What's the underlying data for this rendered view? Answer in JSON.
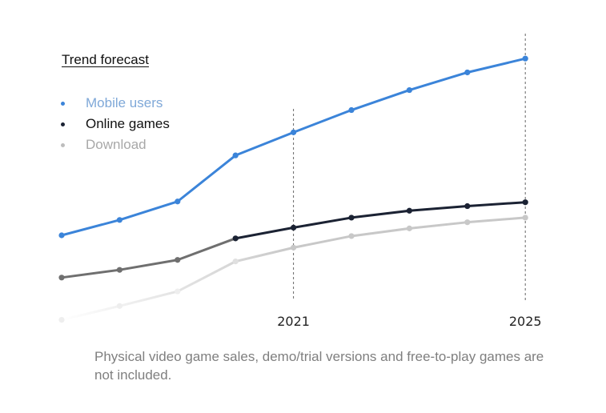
{
  "chart_data": {
    "type": "line",
    "title": "Trend forecast",
    "x": [
      "2017",
      "2018",
      "2019",
      "2020",
      "2021",
      "2022",
      "2023",
      "2024",
      "2025"
    ],
    "x_tick_labels": [
      "2021",
      "2025"
    ],
    "reference_lines_at": [
      "2021",
      "2025"
    ],
    "series": [
      {
        "name": "Mobile users",
        "color": "#3b84d9",
        "values": [
          100,
          120,
          144,
          204,
          234,
          263,
          289,
          312,
          330
        ]
      },
      {
        "name": "Online games",
        "color": "#1b2233",
        "values": [
          45,
          55,
          68,
          96,
          110,
          123,
          132,
          138,
          143
        ]
      },
      {
        "name": "Download",
        "color": "#c8c8c8",
        "values": [
          -10,
          8,
          27,
          66,
          84,
          99,
          109,
          117,
          123
        ]
      }
    ],
    "grid": false,
    "legend": "top-left",
    "note": "Physical video game sales, demo/trial versions and free-to-play games are not included."
  }
}
